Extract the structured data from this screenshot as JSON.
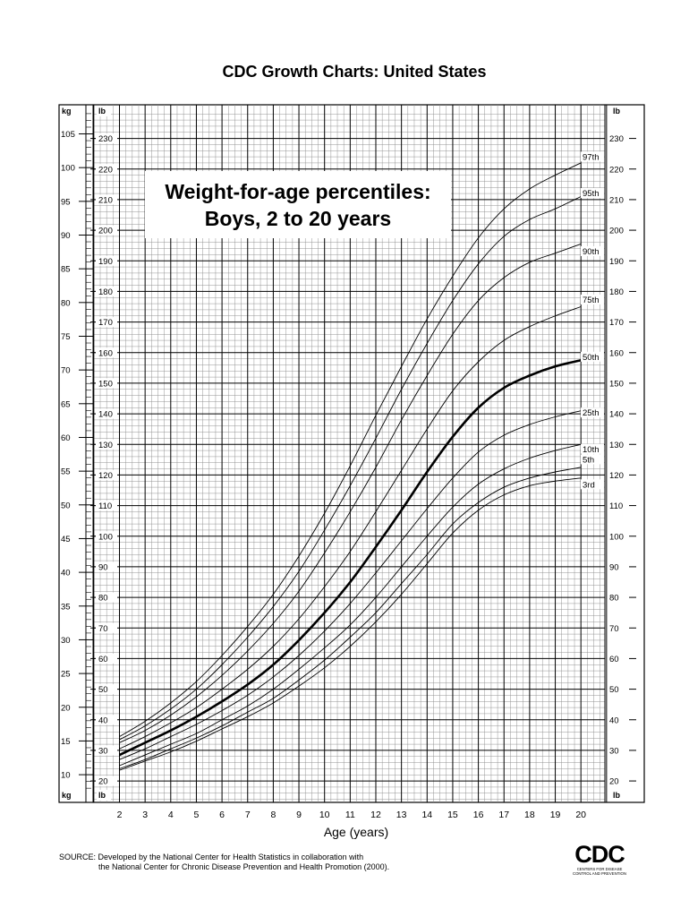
{
  "page_title": "CDC Growth Charts: United States",
  "source_line1": "SOURCE: Developed by the National Center for Health Statistics in collaboration with",
  "source_line2": "the National Center for Chronic Disease Prevention and Health Promotion (2000).",
  "logo": {
    "mark": "CDC",
    "tagline": "Centers for Disease Control and Prevention"
  },
  "chart_data": {
    "type": "line",
    "title_line1": "Weight-for-age percentiles:",
    "title_line2": "Boys, 2 to 20 years",
    "xlabel": "Age (years)",
    "x_ticks": [
      2,
      3,
      4,
      5,
      6,
      7,
      8,
      9,
      10,
      11,
      12,
      13,
      14,
      15,
      16,
      17,
      18,
      19,
      20
    ],
    "xlim": [
      1,
      22
    ],
    "ylim_lb": [
      13,
      241
    ],
    "lb_unit": "lb",
    "kg_unit": "kg",
    "lb_ticks": [
      20,
      30,
      40,
      50,
      60,
      70,
      80,
      90,
      100,
      110,
      120,
      130,
      140,
      150,
      160,
      170,
      180,
      190,
      200,
      210,
      220,
      230
    ],
    "kg_ticks": [
      10,
      15,
      20,
      25,
      30,
      35,
      40,
      45,
      50,
      55,
      60,
      65,
      70,
      75,
      80,
      85,
      90,
      95,
      100,
      105
    ],
    "grid": true,
    "line_color": "#000000",
    "ages": [
      2,
      3,
      4,
      5,
      6,
      7,
      8,
      9,
      10,
      11,
      12,
      13,
      14,
      15,
      16,
      17,
      18,
      19,
      20
    ],
    "series": [
      {
        "name": "3rd",
        "values": [
          23.5,
          26.5,
          29.5,
          33,
          37,
          41,
          45.5,
          51,
          57,
          64,
          72,
          81,
          91,
          101,
          108.5,
          113.5,
          116.5,
          118,
          119
        ]
      },
      {
        "name": "5th",
        "values": [
          24,
          27,
          30.5,
          34,
          38,
          42.5,
          47,
          53,
          59.5,
          67,
          75,
          84.5,
          94,
          104,
          111,
          116,
          119,
          121,
          122.5
        ]
      },
      {
        "name": "10th",
        "values": [
          25,
          28.5,
          32,
          35.5,
          40,
          44.5,
          50,
          56.5,
          63.5,
          71,
          80,
          90,
          100,
          109.5,
          117,
          122,
          125.5,
          128,
          130
        ]
      },
      {
        "name": "25th",
        "values": [
          27,
          30.5,
          34.5,
          38.5,
          43,
          48,
          54,
          61,
          69,
          78,
          88,
          98.5,
          109,
          119,
          127.5,
          133,
          136.5,
          139,
          141
        ]
      },
      {
        "name": "50th",
        "values": [
          28.5,
          32.5,
          36.5,
          41,
          46,
          51.5,
          58,
          66,
          75,
          85,
          96.5,
          108.5,
          121,
          132.5,
          142,
          148.5,
          152.5,
          155.5,
          157.5
        ]
      },
      {
        "name": "75th",
        "values": [
          30.5,
          34.5,
          39,
          44,
          50,
          56.5,
          64,
          73,
          83.5,
          95,
          108,
          121.5,
          135,
          147.5,
          157,
          164,
          168.5,
          172,
          175
        ]
      },
      {
        "name": "90th",
        "values": [
          32.5,
          36.5,
          41.5,
          47.5,
          54.5,
          62.5,
          71.5,
          82,
          94.5,
          108,
          122.5,
          138,
          152.5,
          166,
          177,
          184.5,
          189.5,
          192.5,
          195.5
        ]
      },
      {
        "name": "95th",
        "values": [
          33.5,
          38,
          43.5,
          50,
          58,
          67,
          77,
          88.5,
          102,
          116.5,
          132,
          148,
          163,
          177,
          189,
          198,
          203.5,
          207,
          211
        ]
      },
      {
        "name": "97th",
        "values": [
          34.5,
          39.5,
          45.5,
          52.5,
          61,
          70.5,
          81,
          93.5,
          107.5,
          123,
          139.5,
          155.5,
          171,
          185,
          197.5,
          207,
          213.5,
          218,
          222
        ]
      }
    ]
  }
}
